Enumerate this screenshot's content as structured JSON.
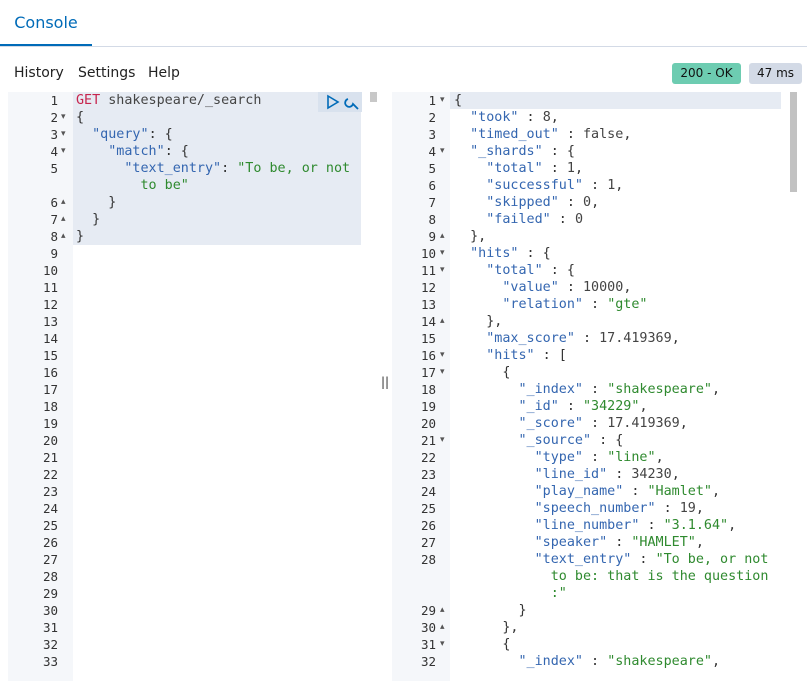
{
  "tab": "Console",
  "menu": [
    "History",
    "Settings",
    "Help"
  ],
  "status": "200 - OK",
  "duration": "47 ms",
  "request": {
    "lines": [
      {
        "num": 1,
        "tokens": [
          "GET",
          " shakespeare/_search"
        ]
      },
      {
        "num": 2,
        "fold": "▾",
        "tokens": [
          "{"
        ]
      },
      {
        "num": 3,
        "fold": "▾",
        "tokens": [
          "  ",
          "\"query\"",
          ": {"
        ]
      },
      {
        "num": 4,
        "fold": "▾",
        "tokens": [
          "    ",
          "\"match\"",
          ": {"
        ]
      },
      {
        "num": 5,
        "tokens": [
          "      ",
          "\"text_entry\"",
          ": ",
          "\"To be, or not"
        ]
      },
      {
        "tokens": [
          "        to be\""
        ]
      },
      {
        "num": 6,
        "fold": "▴",
        "tokens": [
          "    }"
        ]
      },
      {
        "num": 7,
        "fold": "▴",
        "tokens": [
          "  }"
        ]
      },
      {
        "num": 8,
        "fold": "▴",
        "tokens": [
          "}"
        ]
      },
      {
        "num": 9
      },
      {
        "num": 10
      },
      {
        "num": 11
      },
      {
        "num": 12
      },
      {
        "num": 13
      },
      {
        "num": 14
      },
      {
        "num": 15
      },
      {
        "num": 16
      },
      {
        "num": 17
      },
      {
        "num": 18
      },
      {
        "num": 19
      },
      {
        "num": 20
      },
      {
        "num": 21
      },
      {
        "num": 22
      },
      {
        "num": 23
      },
      {
        "num": 24
      },
      {
        "num": 25
      },
      {
        "num": 26
      },
      {
        "num": 27
      },
      {
        "num": 28
      },
      {
        "num": 29
      },
      {
        "num": 30
      },
      {
        "num": 31
      },
      {
        "num": 32
      },
      {
        "num": 33
      }
    ]
  },
  "response": {
    "lines": [
      {
        "num": 1,
        "fold": "▾",
        "tokens": [
          "{"
        ]
      },
      {
        "num": 2,
        "tokens": [
          "  ",
          "\"took\"",
          " : ",
          "8",
          ","
        ]
      },
      {
        "num": 3,
        "tokens": [
          "  ",
          "\"timed_out\"",
          " : ",
          "false",
          ","
        ]
      },
      {
        "num": 4,
        "fold": "▾",
        "tokens": [
          "  ",
          "\"_shards\"",
          " : {"
        ]
      },
      {
        "num": 5,
        "tokens": [
          "    ",
          "\"total\"",
          " : ",
          "1",
          ","
        ]
      },
      {
        "num": 6,
        "tokens": [
          "    ",
          "\"successful\"",
          " : ",
          "1",
          ","
        ]
      },
      {
        "num": 7,
        "tokens": [
          "    ",
          "\"skipped\"",
          " : ",
          "0",
          ","
        ]
      },
      {
        "num": 8,
        "tokens": [
          "    ",
          "\"failed\"",
          " : ",
          "0"
        ]
      },
      {
        "num": 9,
        "fold": "▴",
        "tokens": [
          "  },"
        ]
      },
      {
        "num": 10,
        "fold": "▾",
        "tokens": [
          "  ",
          "\"hits\"",
          " : {"
        ]
      },
      {
        "num": 11,
        "fold": "▾",
        "tokens": [
          "    ",
          "\"total\"",
          " : {"
        ]
      },
      {
        "num": 12,
        "tokens": [
          "      ",
          "\"value\"",
          " : ",
          "10000",
          ","
        ]
      },
      {
        "num": 13,
        "tokens": [
          "      ",
          "\"relation\"",
          " : ",
          "\"gte\""
        ]
      },
      {
        "num": 14,
        "fold": "▴",
        "tokens": [
          "    },"
        ]
      },
      {
        "num": 15,
        "tokens": [
          "    ",
          "\"max_score\"",
          " : ",
          "17.419369",
          ","
        ]
      },
      {
        "num": 16,
        "fold": "▾",
        "tokens": [
          "    ",
          "\"hits\"",
          " : ["
        ]
      },
      {
        "num": 17,
        "fold": "▾",
        "tokens": [
          "      {"
        ]
      },
      {
        "num": 18,
        "tokens": [
          "        ",
          "\"_index\"",
          " : ",
          "\"shakespeare\"",
          ","
        ]
      },
      {
        "num": 19,
        "tokens": [
          "        ",
          "\"_id\"",
          " : ",
          "\"34229\"",
          ","
        ]
      },
      {
        "num": 20,
        "tokens": [
          "        ",
          "\"_score\"",
          " : ",
          "17.419369",
          ","
        ]
      },
      {
        "num": 21,
        "fold": "▾",
        "tokens": [
          "        ",
          "\"_source\"",
          " : {"
        ]
      },
      {
        "num": 22,
        "tokens": [
          "          ",
          "\"type\"",
          " : ",
          "\"line\"",
          ","
        ]
      },
      {
        "num": 23,
        "tokens": [
          "          ",
          "\"line_id\"",
          " : ",
          "34230",
          ","
        ]
      },
      {
        "num": 24,
        "tokens": [
          "          ",
          "\"play_name\"",
          " : ",
          "\"Hamlet\"",
          ","
        ]
      },
      {
        "num": 25,
        "tokens": [
          "          ",
          "\"speech_number\"",
          " : ",
          "19",
          ","
        ]
      },
      {
        "num": 26,
        "tokens": [
          "          ",
          "\"line_number\"",
          " : ",
          "\"3.1.64\"",
          ","
        ]
      },
      {
        "num": 27,
        "tokens": [
          "          ",
          "\"speaker\"",
          " : ",
          "\"HAMLET\"",
          ","
        ]
      },
      {
        "num": 28,
        "tokens": [
          "          ",
          "\"text_entry\"",
          " : ",
          "\"To be, or not"
        ]
      },
      {
        "tokens": [
          "            to be: that is the question"
        ]
      },
      {
        "tokens": [
          "            :\""
        ]
      },
      {
        "num": 29,
        "fold": "▴",
        "tokens": [
          "        }"
        ]
      },
      {
        "num": 30,
        "fold": "▴",
        "tokens": [
          "      },"
        ]
      },
      {
        "num": 31,
        "fold": "▾",
        "tokens": [
          "      {"
        ]
      },
      {
        "num": 32,
        "tokens": [
          "        ",
          "\"_index\"",
          " : ",
          "\"shakespeare\"",
          ","
        ]
      }
    ]
  }
}
